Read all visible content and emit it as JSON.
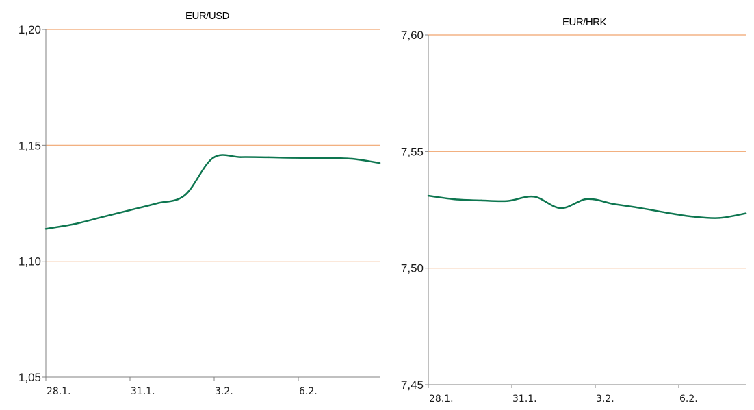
{
  "chart_data": [
    {
      "type": "line",
      "title": "EUR/USD",
      "xlabel": "",
      "ylabel": "",
      "ylim": [
        1.05,
        1.2
      ],
      "yticks": [
        1.05,
        1.1,
        1.15,
        1.2
      ],
      "ytick_labels": [
        "1,05",
        "1,10",
        "1,15",
        "1,20"
      ],
      "gridlines": [
        1.1,
        1.15,
        1.2
      ],
      "xlim": [
        0,
        12
      ],
      "xticks": [
        0,
        3,
        6,
        9
      ],
      "xtick_labels": [
        "28.1.",
        "31.1.",
        "3.2.",
        "6.2."
      ],
      "grid": true,
      "legend": "none",
      "colors": {
        "series": "#0e7650",
        "grid": "#f0a46e",
        "axis": "#808080"
      },
      "series": [
        {
          "x": [
            0,
            1,
            2,
            3,
            4,
            5,
            6,
            7,
            8,
            9,
            10,
            11,
            12
          ],
          "values": [
            1.114,
            1.116,
            1.119,
            1.122,
            1.125,
            1.1285,
            1.1445,
            1.1449,
            1.1448,
            1.1446,
            1.1445,
            1.1442,
            1.1424
          ]
        }
      ]
    },
    {
      "type": "line",
      "title": "EUR/HRK",
      "xlabel": "",
      "ylabel": "",
      "ylim": [
        7.45,
        7.6
      ],
      "yticks": [
        7.45,
        7.5,
        7.55,
        7.6
      ],
      "ytick_labels": [
        "7,45",
        "7,50",
        "7,55",
        "7,60"
      ],
      "gridlines": [
        7.5,
        7.55,
        7.6
      ],
      "xlim": [
        0,
        12
      ],
      "xticks": [
        0,
        3,
        6,
        9
      ],
      "xtick_labels": [
        "28.1.",
        "31.1.",
        "3.2.",
        "6.2."
      ],
      "grid": true,
      "legend": "none",
      "colors": {
        "series": "#0e7650",
        "grid": "#f0a46e",
        "axis": "#808080"
      },
      "series": [
        {
          "x": [
            0,
            1,
            2,
            3,
            4,
            5,
            6,
            7,
            8,
            9,
            10,
            11,
            12
          ],
          "values": [
            7.531,
            7.5295,
            7.529,
            7.5288,
            7.5306,
            7.5257,
            7.5296,
            7.5275,
            7.5258,
            7.5238,
            7.5221,
            7.5215,
            7.5235
          ]
        }
      ]
    }
  ]
}
